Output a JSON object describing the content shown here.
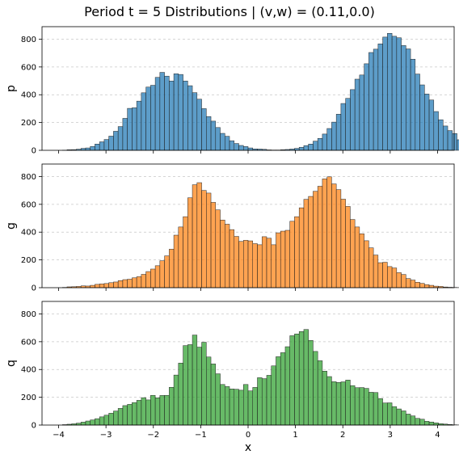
{
  "title": "Period t = 5 Distributions | (v,w) = (0.11,0.0)",
  "chart_data": {
    "type": "bar",
    "subtype": "histogram",
    "title": "Period t = 5 Distributions | (v,w) = (0.11,0.0)",
    "xlabel": "x",
    "xlim": [
      -4.35,
      4.35
    ],
    "xticks": [
      -4,
      -3,
      -2,
      -1,
      0,
      1,
      2,
      3,
      4
    ],
    "grid": "y dashed",
    "shared_x": true,
    "bin_start": -3.92,
    "bin_width": 0.098,
    "panels": [
      {
        "ylabel": "p",
        "color": "#1f77b4",
        "ylim": [
          0,
          890
        ],
        "yticks": [
          0,
          200,
          400,
          600,
          800
        ],
        "values": [
          1,
          4,
          5,
          8,
          14,
          17,
          28,
          45,
          61,
          78,
          102,
          137,
          171,
          230,
          302,
          306,
          354,
          414,
          455,
          468,
          525,
          561,
          534,
          499,
          551,
          546,
          499,
          465,
          415,
          368,
          300,
          243,
          210,
          164,
          122,
          101,
          69,
          49,
          35,
          27,
          17,
          10,
          9,
          7,
          3,
          2,
          2,
          4,
          6,
          9,
          14,
          22,
          34,
          45,
          66,
          86,
          117,
          157,
          203,
          260,
          337,
          374,
          437,
          512,
          542,
          623,
          704,
          728,
          766,
          815,
          842,
          821,
          810,
          754,
          730,
          656,
          549,
          471,
          405,
          362,
          279,
          220,
          175,
          142,
          121,
          76,
          58,
          43,
          29,
          26,
          17,
          10,
          3,
          2
        ]
      },
      {
        "ylabel": "g",
        "color": "#ff7f0e",
        "ylim": [
          0,
          890
        ],
        "yticks": [
          0,
          200,
          400,
          600,
          800
        ],
        "values": [
          2,
          6,
          7,
          9,
          13,
          12,
          17,
          24,
          27,
          30,
          36,
          41,
          51,
          58,
          61,
          71,
          79,
          96,
          116,
          134,
          158,
          194,
          229,
          277,
          378,
          437,
          511,
          647,
          741,
          756,
          700,
          681,
          614,
          560,
          487,
          457,
          418,
          369,
          333,
          341,
          337,
          317,
          309,
          367,
          356,
          309,
          395,
          407,
          413,
          478,
          511,
          575,
          636,
          657,
          694,
          730,
          783,
          798,
          747,
          706,
          637,
          585,
          491,
          437,
          388,
          338,
          287,
          235,
          180,
          183,
          152,
          142,
          108,
          95,
          66,
          55,
          39,
          31,
          22,
          17,
          11,
          9,
          5,
          3,
          2,
          1
        ]
      },
      {
        "ylabel": "q",
        "color": "#2ca02c",
        "ylim": [
          0,
          890
        ],
        "yticks": [
          0,
          200,
          400,
          600,
          800
        ],
        "values": [
          3,
          6,
          9,
          14,
          21,
          29,
          37,
          46,
          59,
          71,
          85,
          101,
          120,
          140,
          149,
          162,
          178,
          197,
          181,
          214,
          196,
          213,
          214,
          272,
          360,
          446,
          572,
          579,
          648,
          561,
          596,
          490,
          440,
          369,
          292,
          277,
          260,
          258,
          251,
          292,
          246,
          271,
          341,
          334,
          358,
          426,
          492,
          521,
          564,
          643,
          656,
          673,
          688,
          609,
          530,
          463,
          388,
          349,
          312,
          307,
          311,
          324,
          284,
          269,
          270,
          264,
          236,
          234,
          191,
          159,
          160,
          133,
          116,
          102,
          79,
          66,
          48,
          42,
          27,
          22,
          16,
          10,
          7,
          4,
          2,
          1
        ]
      }
    ]
  }
}
